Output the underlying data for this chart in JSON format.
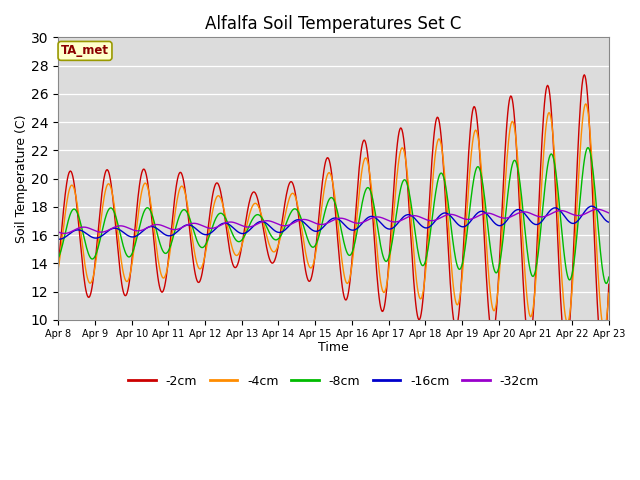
{
  "title": "Alfalfa Soil Temperatures Set C",
  "xlabel": "Time",
  "ylabel": "Soil Temperature (C)",
  "ylim": [
    10,
    30
  ],
  "yticks": [
    10,
    12,
    14,
    16,
    18,
    20,
    22,
    24,
    26,
    28,
    30
  ],
  "annotation_text": "TA_met",
  "annotation_color": "#8B0000",
  "annotation_bg": "#FFFFCC",
  "annotation_border": "#999900",
  "bg_color": "#DCDCDC",
  "plot_bg": "#DCDCDC",
  "colors": {
    "-2cm": "#CC0000",
    "-4cm": "#FF8C00",
    "-8cm": "#00BB00",
    "-16cm": "#0000CC",
    "-32cm": "#9900CC"
  },
  "tick_labels": [
    "Apr 8",
    "Apr 9",
    "Apr 10",
    "Apr 11",
    "Apr 12",
    "Apr 13",
    "Apr 14",
    "Apr 15",
    "Apr 16",
    "Apr 17",
    "Apr 18",
    "Apr 19",
    "Apr 20",
    "Apr 21",
    "Apr 22",
    "Apr 23"
  ],
  "n_per_day": 48,
  "n_days": 15
}
